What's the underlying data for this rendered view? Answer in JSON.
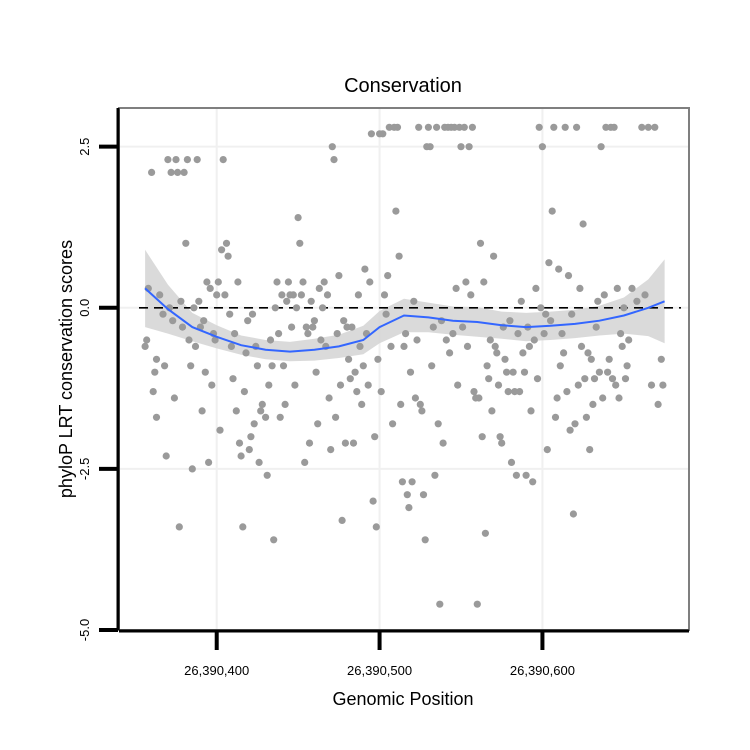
{
  "chart_data": {
    "type": "scatter",
    "title": "Conservation",
    "xlabel": "Genomic Position",
    "ylabel": "phyloP LRT conservation scores",
    "xlim": [
      26390340,
      26390690
    ],
    "ylim": [
      -5,
      3.1
    ],
    "x_ticks": [
      26390400,
      26390500,
      26390600
    ],
    "x_tick_labels": [
      "26,390,400",
      "26,390,500",
      "26,390,600"
    ],
    "y_ticks": [
      -5,
      -2.5,
      0,
      2.5
    ],
    "y_tick_labels": [
      "-5.0",
      "-2.5",
      "0.0",
      "2.5"
    ],
    "grid": true,
    "reference_line": {
      "y": 0,
      "style": "dashed",
      "color": "#000000"
    },
    "colors": {
      "points": "#9a9a9a",
      "smooth": "#3366ff",
      "band": "#d4d4d4",
      "panel_border": "#7f7f7f",
      "grid": "#f0f0f0"
    },
    "points": [
      [
        26390356,
        -0.6
      ],
      [
        26390357,
        -0.5
      ],
      [
        26390358,
        0.3
      ],
      [
        26390360,
        2.1
      ],
      [
        26390361,
        -1.3
      ],
      [
        26390362,
        -1.0
      ],
      [
        26390363,
        -0.8
      ],
      [
        26390363,
        -1.7
      ],
      [
        26390365,
        0.2
      ],
      [
        26390367,
        -0.1
      ],
      [
        26390368,
        -0.9
      ],
      [
        26390369,
        -2.3
      ],
      [
        26390370,
        2.3
      ],
      [
        26390371,
        0.0
      ],
      [
        26390372,
        2.1
      ],
      [
        26390373,
        -0.2
      ],
      [
        26390374,
        -1.4
      ],
      [
        26390375,
        2.3
      ],
      [
        26390376,
        2.1
      ],
      [
        26390377,
        -3.4
      ],
      [
        26390378,
        0.1
      ],
      [
        26390379,
        -0.3
      ],
      [
        26390380,
        2.1
      ],
      [
        26390381,
        1.0
      ],
      [
        26390382,
        2.3
      ],
      [
        26390383,
        -0.5
      ],
      [
        26390384,
        -0.9
      ],
      [
        26390385,
        -2.5
      ],
      [
        26390386,
        0.0
      ],
      [
        26390387,
        -0.6
      ],
      [
        26390388,
        2.3
      ],
      [
        26390389,
        0.1
      ],
      [
        26390390,
        -0.3
      ],
      [
        26390391,
        -1.6
      ],
      [
        26390392,
        -0.2
      ],
      [
        26390393,
        -1.0
      ],
      [
        26390394,
        0.4
      ],
      [
        26390395,
        -2.4
      ],
      [
        26390396,
        0.3
      ],
      [
        26390397,
        -1.2
      ],
      [
        26390398,
        -0.4
      ],
      [
        26390399,
        -0.5
      ],
      [
        26390400,
        0.2
      ],
      [
        26390401,
        0.4
      ],
      [
        26390402,
        -1.9
      ],
      [
        26390403,
        0.9
      ],
      [
        26390404,
        2.3
      ],
      [
        26390405,
        0.2
      ],
      [
        26390406,
        1.0
      ],
      [
        26390407,
        0.8
      ],
      [
        26390408,
        -0.1
      ],
      [
        26390409,
        -0.6
      ],
      [
        26390410,
        -1.1
      ],
      [
        26390411,
        -0.4
      ],
      [
        26390412,
        -1.6
      ],
      [
        26390413,
        0.4
      ],
      [
        26390414,
        -2.1
      ],
      [
        26390415,
        -2.3
      ],
      [
        26390416,
        -3.4
      ],
      [
        26390417,
        -1.3
      ],
      [
        26390418,
        -0.7
      ],
      [
        26390419,
        -0.2
      ],
      [
        26390420,
        -2.2
      ],
      [
        26390421,
        -2.0
      ],
      [
        26390422,
        -0.1
      ],
      [
        26390423,
        -1.8
      ],
      [
        26390424,
        -0.6
      ],
      [
        26390425,
        -0.9
      ],
      [
        26390426,
        -2.4
      ],
      [
        26390427,
        -1.6
      ],
      [
        26390428,
        -1.5
      ],
      [
        26390430,
        -1.7
      ],
      [
        26390431,
        -2.6
      ],
      [
        26390432,
        -1.2
      ],
      [
        26390433,
        -0.5
      ],
      [
        26390434,
        -0.9
      ],
      [
        26390435,
        -3.6
      ],
      [
        26390436,
        0.0
      ],
      [
        26390437,
        0.4
      ],
      [
        26390438,
        -0.4
      ],
      [
        26390439,
        -1.7
      ],
      [
        26390440,
        0.2
      ],
      [
        26390441,
        -0.9
      ],
      [
        26390442,
        -1.5
      ],
      [
        26390443,
        0.1
      ],
      [
        26390444,
        0.4
      ],
      [
        26390445,
        0.2
      ],
      [
        26390446,
        -0.3
      ],
      [
        26390447,
        0.2
      ],
      [
        26390448,
        -1.2
      ],
      [
        26390449,
        0.0
      ],
      [
        26390450,
        1.4
      ],
      [
        26390451,
        1.0
      ],
      [
        26390452,
        0.2
      ],
      [
        26390453,
        0.4
      ],
      [
        26390454,
        -2.4
      ],
      [
        26390455,
        -0.3
      ],
      [
        26390456,
        -0.4
      ],
      [
        26390457,
        -2.1
      ],
      [
        26390458,
        0.1
      ],
      [
        26390459,
        -0.3
      ],
      [
        26390460,
        -0.2
      ],
      [
        26390461,
        -1.0
      ],
      [
        26390462,
        -1.8
      ],
      [
        26390463,
        0.3
      ],
      [
        26390464,
        -0.5
      ],
      [
        26390465,
        0.0
      ],
      [
        26390466,
        0.4
      ],
      [
        26390467,
        -0.6
      ],
      [
        26390468,
        0.2
      ],
      [
        26390469,
        -1.4
      ],
      [
        26390470,
        -2.2
      ],
      [
        26390471,
        2.5
      ],
      [
        26390472,
        2.3
      ],
      [
        26390473,
        -1.7
      ],
      [
        26390474,
        -0.4
      ],
      [
        26390475,
        0.5
      ],
      [
        26390476,
        -1.2
      ],
      [
        26390477,
        -3.3
      ],
      [
        26390478,
        -0.2
      ],
      [
        26390479,
        -2.1
      ],
      [
        26390480,
        -0.3
      ],
      [
        26390481,
        -0.8
      ],
      [
        26390482,
        -1.1
      ],
      [
        26390483,
        -0.3
      ],
      [
        26390484,
        -2.1
      ],
      [
        26390485,
        -1.0
      ],
      [
        26390486,
        -1.3
      ],
      [
        26390487,
        0.2
      ],
      [
        26390488,
        -0.6
      ],
      [
        26390489,
        -1.5
      ],
      [
        26390490,
        -0.9
      ],
      [
        26390491,
        0.6
      ],
      [
        26390492,
        -0.4
      ],
      [
        26390493,
        -1.2
      ],
      [
        26390494,
        0.4
      ],
      [
        26390495,
        2.7
      ],
      [
        26390496,
        -3.0
      ],
      [
        26390497,
        -2.0
      ],
      [
        26390498,
        -3.4
      ],
      [
        26390499,
        -0.8
      ],
      [
        26390500,
        2.7
      ],
      [
        26390501,
        -1.3
      ],
      [
        26390502,
        2.7
      ],
      [
        26390503,
        0.2
      ],
      [
        26390504,
        -0.1
      ],
      [
        26390505,
        0.5
      ],
      [
        26390506,
        2.8
      ],
      [
        26390507,
        -0.6
      ],
      [
        26390508,
        -1.8
      ],
      [
        26390509,
        2.8
      ],
      [
        26390510,
        1.5
      ],
      [
        26390511,
        2.8
      ],
      [
        26390512,
        0.8
      ],
      [
        26390513,
        -1.5
      ],
      [
        26390514,
        -2.7
      ],
      [
        26390515,
        -0.6
      ],
      [
        26390516,
        -0.4
      ],
      [
        26390517,
        -2.9
      ],
      [
        26390518,
        -3.1
      ],
      [
        26390519,
        -1.0
      ],
      [
        26390520,
        -2.7
      ],
      [
        26390521,
        0.1
      ],
      [
        26390522,
        -1.4
      ],
      [
        26390523,
        -0.5
      ],
      [
        26390524,
        2.8
      ],
      [
        26390525,
        -1.5
      ],
      [
        26390526,
        -1.6
      ],
      [
        26390527,
        -2.9
      ],
      [
        26390528,
        -3.6
      ],
      [
        26390529,
        2.5
      ],
      [
        26390530,
        2.8
      ],
      [
        26390531,
        2.5
      ],
      [
        26390532,
        -0.9
      ],
      [
        26390533,
        -0.3
      ],
      [
        26390534,
        -2.6
      ],
      [
        26390535,
        2.8
      ],
      [
        26390536,
        -1.8
      ],
      [
        26390537,
        -4.6
      ],
      [
        26390538,
        -0.2
      ],
      [
        26390539,
        -2.1
      ],
      [
        26390540,
        2.8
      ],
      [
        26390541,
        -0.5
      ],
      [
        26390542,
        2.8
      ],
      [
        26390543,
        -0.7
      ],
      [
        26390544,
        2.8
      ],
      [
        26390545,
        -0.4
      ],
      [
        26390546,
        2.8
      ],
      [
        26390547,
        0.3
      ],
      [
        26390548,
        -1.2
      ],
      [
        26390549,
        2.8
      ],
      [
        26390550,
        2.5
      ],
      [
        26390551,
        -0.3
      ],
      [
        26390552,
        2.8
      ],
      [
        26390553,
        0.4
      ],
      [
        26390554,
        -0.6
      ],
      [
        26390555,
        2.5
      ],
      [
        26390556,
        0.2
      ],
      [
        26390557,
        2.8
      ],
      [
        26390558,
        -1.3
      ],
      [
        26390559,
        -1.4
      ],
      [
        26390560,
        -4.6
      ],
      [
        26390561,
        -1.4
      ],
      [
        26390562,
        1.0
      ],
      [
        26390563,
        -2.0
      ],
      [
        26390564,
        0.4
      ],
      [
        26390565,
        -3.5
      ],
      [
        26390566,
        -0.9
      ],
      [
        26390567,
        -1.1
      ],
      [
        26390568,
        -0.5
      ],
      [
        26390569,
        -1.6
      ],
      [
        26390570,
        0.8
      ],
      [
        26390571,
        -0.6
      ],
      [
        26390572,
        -0.7
      ],
      [
        26390573,
        -1.2
      ],
      [
        26390574,
        -2.0
      ],
      [
        26390575,
        -2.1
      ],
      [
        26390576,
        -0.3
      ],
      [
        26390577,
        -0.8
      ],
      [
        26390578,
        -1.0
      ],
      [
        26390579,
        -1.3
      ],
      [
        26390580,
        -0.2
      ],
      [
        26390581,
        -2.4
      ],
      [
        26390582,
        -1.0
      ],
      [
        26390583,
        -1.3
      ],
      [
        26390584,
        -2.6
      ],
      [
        26390585,
        -0.4
      ],
      [
        26390586,
        -1.3
      ],
      [
        26390587,
        0.1
      ],
      [
        26390588,
        -0.7
      ],
      [
        26390589,
        -1.0
      ],
      [
        26390590,
        -2.6
      ],
      [
        26390591,
        -0.3
      ],
      [
        26390592,
        -0.6
      ],
      [
        26390593,
        -1.6
      ],
      [
        26390594,
        -2.7
      ],
      [
        26390595,
        -0.5
      ],
      [
        26390596,
        0.3
      ],
      [
        26390597,
        -1.1
      ],
      [
        26390598,
        2.8
      ],
      [
        26390599,
        0.0
      ],
      [
        26390600,
        2.5
      ],
      [
        26390601,
        -0.4
      ],
      [
        26390602,
        -0.1
      ],
      [
        26390603,
        -2.2
      ],
      [
        26390604,
        0.7
      ],
      [
        26390605,
        -0.2
      ],
      [
        26390606,
        1.5
      ],
      [
        26390607,
        2.8
      ],
      [
        26390608,
        -1.7
      ],
      [
        26390609,
        -1.4
      ],
      [
        26390610,
        0.6
      ],
      [
        26390611,
        -0.9
      ],
      [
        26390612,
        -0.4
      ],
      [
        26390613,
        -0.7
      ],
      [
        26390614,
        2.8
      ],
      [
        26390615,
        -1.3
      ],
      [
        26390616,
        0.5
      ],
      [
        26390617,
        -1.9
      ],
      [
        26390618,
        -0.1
      ],
      [
        26390619,
        -3.2
      ],
      [
        26390620,
        -1.8
      ],
      [
        26390621,
        2.8
      ],
      [
        26390622,
        -1.2
      ],
      [
        26390623,
        0.3
      ],
      [
        26390624,
        -0.6
      ],
      [
        26390625,
        1.3
      ],
      [
        26390626,
        -1.1
      ],
      [
        26390627,
        -1.7
      ],
      [
        26390628,
        -0.7
      ],
      [
        26390629,
        -2.2
      ],
      [
        26390630,
        -0.8
      ],
      [
        26390631,
        -1.5
      ],
      [
        26390632,
        -1.1
      ],
      [
        26390633,
        -0.3
      ],
      [
        26390634,
        0.1
      ],
      [
        26390635,
        -1.0
      ],
      [
        26390636,
        2.5
      ],
      [
        26390637,
        -1.4
      ],
      [
        26390638,
        0.2
      ],
      [
        26390639,
        2.8
      ],
      [
        26390640,
        -1.0
      ],
      [
        26390641,
        -0.8
      ],
      [
        26390642,
        2.8
      ],
      [
        26390643,
        -1.1
      ],
      [
        26390644,
        2.8
      ],
      [
        26390645,
        -1.2
      ],
      [
        26390646,
        0.3
      ],
      [
        26390647,
        -1.4
      ],
      [
        26390648,
        -0.4
      ],
      [
        26390649,
        -0.6
      ],
      [
        26390650,
        0.0
      ],
      [
        26390651,
        -1.1
      ],
      [
        26390652,
        -0.9
      ],
      [
        26390653,
        -0.5
      ],
      [
        26390655,
        0.3
      ],
      [
        26390658,
        0.1
      ],
      [
        26390661,
        2.8
      ],
      [
        26390663,
        0.2
      ],
      [
        26390665,
        2.8
      ],
      [
        26390667,
        -1.2
      ],
      [
        26390669,
        2.8
      ],
      [
        26390671,
        -1.5
      ],
      [
        26390673,
        -0.8
      ],
      [
        26390674,
        -1.2
      ]
    ],
    "smooth": {
      "x": [
        26390356,
        26390370,
        26390385,
        26390400,
        26390415,
        26390430,
        26390445,
        26390460,
        26390475,
        26390490,
        26390500,
        26390515,
        26390530,
        26390545,
        26390560,
        26390575,
        26390590,
        26390605,
        26390620,
        26390635,
        26390650,
        26390665,
        26390675
      ],
      "y": [
        0.3,
        -0.02,
        -0.3,
        -0.45,
        -0.58,
        -0.65,
        -0.68,
        -0.65,
        -0.6,
        -0.5,
        -0.3,
        -0.12,
        -0.15,
        -0.2,
        -0.22,
        -0.27,
        -0.3,
        -0.28,
        -0.25,
        -0.2,
        -0.12,
        0.0,
        0.1
      ],
      "lower": [
        -0.3,
        -0.4,
        -0.52,
        -0.63,
        -0.73,
        -0.8,
        -0.83,
        -0.82,
        -0.78,
        -0.72,
        -0.55,
        -0.38,
        -0.38,
        -0.42,
        -0.45,
        -0.48,
        -0.52,
        -0.5,
        -0.47,
        -0.43,
        -0.4,
        -0.44,
        -0.55
      ],
      "upper": [
        0.9,
        0.36,
        -0.08,
        -0.27,
        -0.43,
        -0.5,
        -0.53,
        -0.48,
        -0.42,
        -0.28,
        -0.05,
        0.14,
        0.08,
        0.02,
        0.01,
        -0.06,
        -0.08,
        -0.06,
        -0.03,
        0.03,
        0.16,
        0.44,
        0.75
      ]
    }
  }
}
